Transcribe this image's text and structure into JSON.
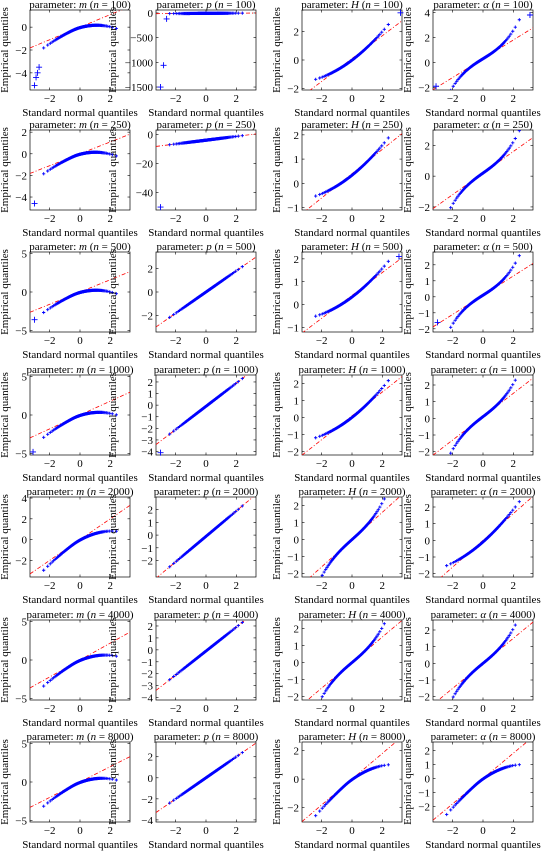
{
  "style": {
    "marker_color": "#0000ff",
    "line_color": "#ff0000",
    "axis_color": "#000000"
  },
  "chart_data": [
    {
      "type": "scatter",
      "param": "m",
      "n": "100",
      "title": "parameter: m (n = 100)",
      "xlabel": "Standard normal quantiles",
      "ylabel": "Empirical quantiles",
      "xlim": [
        -3.3,
        3.3
      ],
      "ylim": [
        -5.5,
        1.5
      ],
      "yticks": [
        -4,
        -2,
        0
      ],
      "xticks": [
        -2,
        0,
        2
      ],
      "shape": "conc",
      "line_slope": 0.55,
      "line_intercept": 0.0,
      "tails": [
        [
          -3.0,
          -5.1
        ],
        [
          -2.9,
          -4.4
        ],
        [
          -2.8,
          -4.0
        ],
        [
          -2.7,
          -3.5
        ]
      ]
    },
    {
      "type": "scatter",
      "param": "p",
      "n": "100",
      "title": "parameter: p (n = 100)",
      "xlabel": "Standard normal quantiles",
      "ylabel": "Empirical quantiles",
      "xlim": [
        -3.3,
        3.3
      ],
      "ylim": [
        -1560,
        60
      ],
      "yticks": [
        -1500,
        -1000,
        -500,
        0
      ],
      "xticks": [
        -2,
        0,
        2
      ],
      "shape": "flat",
      "line_slope": 0,
      "line_intercept": 0,
      "tails": [
        [
          -3.0,
          -1500
        ],
        [
          -2.8,
          -1060
        ],
        [
          -2.6,
          -120
        ]
      ]
    },
    {
      "type": "scatter",
      "param": "H",
      "n": "100",
      "title": "parameter: H (n = 100)",
      "xlabel": "Standard normal quantiles",
      "ylabel": "Empirical quantiles",
      "xlim": [
        -3.3,
        3.3
      ],
      "ylim": [
        -2.1,
        3.5
      ],
      "yticks": [
        -2,
        0,
        2
      ],
      "xticks": [
        -2,
        0,
        2
      ],
      "shape": "conv",
      "line_slope": 0.8,
      "line_intercept": 0.1,
      "tails": [
        [
          3.2,
          3.3
        ]
      ]
    },
    {
      "type": "scatter",
      "param": "α",
      "n": "100",
      "title": "parameter: α (n = 100)",
      "xlabel": "Standard normal quantiles",
      "ylabel": "Empirical quantiles",
      "xlim": [
        -3.3,
        3.3
      ],
      "ylim": [
        -2.2,
        4.2
      ],
      "yticks": [
        -2,
        0,
        2,
        4
      ],
      "xticks": [
        -2,
        0,
        2
      ],
      "shape": "s",
      "line_slope": 0.75,
      "line_intercept": 0.3,
      "tails": [
        [
          -3.1,
          -1.9
        ],
        [
          3.1,
          3.8
        ]
      ]
    },
    {
      "type": "scatter",
      "param": "m",
      "n": "250",
      "title": "parameter: m (n = 250)",
      "xlabel": "Standard normal quantiles",
      "ylabel": "Empirical quantiles",
      "xlim": [
        -3.3,
        3.3
      ],
      "ylim": [
        -5.2,
        2.2
      ],
      "yticks": [
        -4,
        -2,
        0,
        2
      ],
      "xticks": [
        -2,
        0,
        2
      ],
      "shape": "conc",
      "line_slope": 0.55,
      "line_intercept": 0.0,
      "tails": [
        [
          -3.0,
          -4.6
        ]
      ]
    },
    {
      "type": "scatter",
      "param": "p",
      "n": "250",
      "title": "parameter: p (n = 250)",
      "xlabel": "Standard normal quantiles",
      "ylabel": "Empirical quantiles",
      "xlim": [
        -3.3,
        3.3
      ],
      "ylim": [
        -52,
        3
      ],
      "yticks": [
        -40,
        -20,
        0
      ],
      "xticks": [
        -2,
        0,
        2
      ],
      "shape": "flatlow",
      "line_slope": 0.5,
      "line_intercept": -0.5,
      "tails": [
        [
          -3.0,
          -50
        ]
      ]
    },
    {
      "type": "scatter",
      "param": "H",
      "n": "250",
      "title": "parameter: H (n = 250)",
      "xlabel": "Standard normal quantiles",
      "ylabel": "Empirical quantiles",
      "xlim": [
        -3.3,
        3.3
      ],
      "ylim": [
        -1.1,
        2.2
      ],
      "yticks": [
        -1,
        0,
        1,
        2
      ],
      "xticks": [
        -2,
        0,
        2
      ],
      "shape": "conv",
      "line_slope": 0.5,
      "line_intercept": 0.4,
      "tails": []
    },
    {
      "type": "scatter",
      "param": "α",
      "n": "250",
      "title": "parameter: α (n = 250)",
      "xlabel": "Standard normal quantiles",
      "ylabel": "Empirical quantiles",
      "xlim": [
        -3.3,
        3.3
      ],
      "ylim": [
        -2.2,
        3.0
      ],
      "yticks": [
        -2,
        0,
        2
      ],
      "xticks": [
        -2,
        0,
        2
      ],
      "shape": "s",
      "line_slope": 0.7,
      "line_intercept": 0.2,
      "tails": []
    },
    {
      "type": "scatter",
      "param": "m",
      "n": "500",
      "title": "parameter: m (n = 500)",
      "xlabel": "Standard normal quantiles",
      "ylabel": "Empirical quantiles",
      "xlim": [
        -3.3,
        3.3
      ],
      "ylim": [
        -5.2,
        5.2
      ],
      "yticks": [
        -5,
        0,
        5
      ],
      "xticks": [
        -2,
        0,
        2
      ],
      "shape": "conc",
      "line_slope": 0.8,
      "line_intercept": 0.0,
      "tails": [
        [
          -3.0,
          -3.6
        ]
      ]
    },
    {
      "type": "scatter",
      "param": "p",
      "n": "500",
      "title": "parameter: p (n = 500)",
      "xlabel": "Standard normal quantiles",
      "ylabel": "Empirical quantiles",
      "xlim": [
        -3.3,
        3.3
      ],
      "ylim": [
        -3.4,
        3.4
      ],
      "yticks": [
        -2,
        0,
        2
      ],
      "xticks": [
        -2,
        0,
        2
      ],
      "shape": "lin",
      "line_slope": 0.9,
      "line_intercept": 0.0,
      "tails": []
    },
    {
      "type": "scatter",
      "param": "H",
      "n": "500",
      "title": "parameter: H (n = 500)",
      "xlabel": "Standard normal quantiles",
      "ylabel": "Empirical quantiles",
      "xlim": [
        -3.3,
        3.3
      ],
      "ylim": [
        -1.2,
        2.3
      ],
      "yticks": [
        -1,
        0,
        1,
        2
      ],
      "xticks": [
        -2,
        0,
        2
      ],
      "shape": "conv",
      "line_slope": 0.5,
      "line_intercept": 0.4,
      "tails": [
        [
          3.1,
          2.1
        ]
      ]
    },
    {
      "type": "scatter",
      "param": "α",
      "n": "500",
      "title": "parameter: α (n = 500)",
      "xlabel": "Standard normal quantiles",
      "ylabel": "Empirical quantiles",
      "xlim": [
        -3.3,
        3.3
      ],
      "ylim": [
        -2.2,
        2.8
      ],
      "yticks": [
        -2,
        -1,
        0,
        1,
        2
      ],
      "xticks": [
        -2,
        0,
        2
      ],
      "shape": "s",
      "line_slope": 0.6,
      "line_intercept": 0.1,
      "tails": [
        [
          -3.0,
          -1.6
        ]
      ]
    },
    {
      "type": "scatter",
      "param": "m",
      "n": "1000",
      "title": "parameter: m (n = 1000)",
      "xlabel": "Standard normal quantiles",
      "ylabel": "Empirical quantiles",
      "xlim": [
        -3.3,
        3.3
      ],
      "ylim": [
        -5.2,
        5.2
      ],
      "yticks": [
        -5,
        0,
        5
      ],
      "xticks": [
        -2,
        0,
        2
      ],
      "shape": "conc",
      "line_slope": 0.9,
      "line_intercept": 0.0,
      "tails": [
        [
          -3.1,
          -4.8
        ]
      ]
    },
    {
      "type": "scatter",
      "param": "p",
      "n": "1000",
      "title": "parameter: p (n = 1000)",
      "xlabel": "Standard normal quantiles",
      "ylabel": "Empirical quantiles",
      "xlim": [
        -3.3,
        3.3
      ],
      "ylim": [
        -4.3,
        2.6
      ],
      "yticks": [
        -4,
        -3,
        -2,
        -1,
        0,
        1,
        2
      ],
      "xticks": [
        -2,
        0,
        2
      ],
      "shape": "lin",
      "line_slope": 1.0,
      "line_intercept": -0.1,
      "tails": [
        [
          -3.0,
          -4.1
        ]
      ]
    },
    {
      "type": "scatter",
      "param": "H",
      "n": "1000",
      "title": "parameter: H (n = 1000)",
      "xlabel": "Standard normal quantiles",
      "ylabel": "Empirical quantiles",
      "xlim": [
        -3.3,
        3.3
      ],
      "ylim": [
        -2.2,
        2.5
      ],
      "yticks": [
        -2,
        -1,
        0,
        1,
        2
      ],
      "xticks": [
        -2,
        0,
        2
      ],
      "shape": "conv",
      "line_slope": 0.7,
      "line_intercept": 0.1,
      "tails": []
    },
    {
      "type": "scatter",
      "param": "α",
      "n": "1000",
      "title": "parameter: α (n = 1000)",
      "xlabel": "Standard normal quantiles",
      "ylabel": "Empirical quantiles",
      "xlim": [
        -3.3,
        3.3
      ],
      "ylim": [
        -2.2,
        2.6
      ],
      "yticks": [
        -2,
        -1,
        0,
        1,
        2
      ],
      "xticks": [
        -2,
        0,
        2
      ],
      "shape": "s",
      "line_slope": 0.7,
      "line_intercept": 0.1,
      "tails": []
    },
    {
      "type": "scatter",
      "param": "m",
      "n": "2000",
      "title": "parameter: m (n = 2000)",
      "xlabel": "Standard normal quantiles",
      "ylabel": "Empirical quantiles",
      "xlim": [
        -3.3,
        3.3
      ],
      "ylim": [
        -3.6,
        4.1
      ],
      "yticks": [
        -2,
        0,
        2,
        4
      ],
      "xticks": [
        -2,
        0,
        2
      ],
      "shape": "conc",
      "line_slope": 1.0,
      "line_intercept": 0.0,
      "tails": []
    },
    {
      "type": "scatter",
      "param": "p",
      "n": "2000",
      "title": "parameter: p (n = 2000)",
      "xlabel": "Standard normal quantiles",
      "ylabel": "Empirical quantiles",
      "xlim": [
        -3.3,
        3.3
      ],
      "ylim": [
        -3.3,
        3.0
      ],
      "yticks": [
        -2,
        -1,
        0,
        1,
        2
      ],
      "xticks": [
        -2,
        0,
        2
      ],
      "shape": "lin",
      "line_slope": 1.0,
      "line_intercept": -0.1,
      "tails": []
    },
    {
      "type": "scatter",
      "param": "H",
      "n": "2000",
      "title": "parameter: H (n = 2000)",
      "xlabel": "Standard normal quantiles",
      "ylabel": "Empirical quantiles",
      "xlim": [
        -3.3,
        3.3
      ],
      "ylim": [
        -2.2,
        2.5
      ],
      "yticks": [
        -2,
        -1,
        0,
        1,
        2
      ],
      "xticks": [
        -2,
        0,
        2
      ],
      "shape": "s",
      "line_slope": 0.8,
      "line_intercept": 0.0,
      "tails": []
    },
    {
      "type": "scatter",
      "param": "α",
      "n": "2000",
      "title": "parameter: α (n = 2000)",
      "xlabel": "Standard normal quantiles",
      "ylabel": "Empirical quantiles",
      "xlim": [
        -3.3,
        3.3
      ],
      "ylim": [
        -2.2,
        2.6
      ],
      "yticks": [
        -2,
        -1,
        0,
        1,
        2
      ],
      "xticks": [
        -2,
        0,
        2
      ],
      "shape": "conv",
      "line_slope": 0.8,
      "line_intercept": 0.0,
      "tails": []
    },
    {
      "type": "scatter",
      "param": "m",
      "n": "4000",
      "title": "parameter: m (n = 4000)",
      "xlabel": "Standard normal quantiles",
      "ylabel": "Empirical quantiles",
      "xlim": [
        -3.3,
        3.3
      ],
      "ylim": [
        -5.2,
        5.2
      ],
      "yticks": [
        -5,
        0,
        5
      ],
      "xticks": [
        -2,
        0,
        2
      ],
      "shape": "conc",
      "line_slope": 1.1,
      "line_intercept": 0.0,
      "tails": []
    },
    {
      "type": "scatter",
      "param": "p",
      "n": "4000",
      "title": "parameter: p (n = 4000)",
      "xlabel": "Standard normal quantiles",
      "ylabel": "Empirical quantiles",
      "xlim": [
        -3.3,
        3.3
      ],
      "ylim": [
        -4.2,
        2.5
      ],
      "yticks": [
        -4,
        -3,
        -2,
        -1,
        0,
        1,
        2
      ],
      "xticks": [
        -2,
        0,
        2
      ],
      "shape": "lin",
      "line_slope": 1.0,
      "line_intercept": -0.1,
      "tails": []
    },
    {
      "type": "scatter",
      "param": "H",
      "n": "4000",
      "title": "parameter: H (n = 4000)",
      "xlabel": "Standard normal quantiles",
      "ylabel": "Empirical quantiles",
      "xlim": [
        -3.3,
        3.3
      ],
      "ylim": [
        -2.2,
        2.5
      ],
      "yticks": [
        -2,
        -1,
        0,
        1,
        2
      ],
      "xticks": [
        -2,
        0,
        2
      ],
      "shape": "s",
      "line_slope": 0.75,
      "line_intercept": 0.0,
      "tails": []
    },
    {
      "type": "scatter",
      "param": "α",
      "n": "4000",
      "title": "parameter: α (n = 4000)",
      "xlabel": "Standard normal quantiles",
      "ylabel": "Empirical quantiles",
      "xlim": [
        -3.3,
        3.3
      ],
      "ylim": [
        -2.2,
        2.6
      ],
      "yticks": [
        -2,
        -1,
        0,
        1,
        2
      ],
      "xticks": [
        -2,
        0,
        2
      ],
      "shape": "s",
      "line_slope": 0.75,
      "line_intercept": 0.0,
      "tails": []
    },
    {
      "type": "scatter",
      "param": "m",
      "n": "8000",
      "title": "parameter: m (n = 8000)",
      "xlabel": "Standard normal quantiles",
      "ylabel": "Empirical quantiles",
      "xlim": [
        -3.3,
        3.3
      ],
      "ylim": [
        -5.2,
        5.2
      ],
      "yticks": [
        -5,
        0,
        5
      ],
      "xticks": [
        -2,
        0,
        2
      ],
      "shape": "conc",
      "line_slope": 1.0,
      "line_intercept": 0.0,
      "tails": []
    },
    {
      "type": "scatter",
      "param": "p",
      "n": "8000",
      "title": "parameter: p (n = 8000)",
      "xlabel": "Standard normal quantiles",
      "ylabel": "Empirical quantiles",
      "xlim": [
        -3.3,
        3.3
      ],
      "ylim": [
        -4.2,
        3.4
      ],
      "yticks": [
        -4,
        -2,
        0,
        2
      ],
      "xticks": [
        -2,
        0,
        2
      ],
      "shape": "lin",
      "line_slope": 1.0,
      "line_intercept": 0.0,
      "tails": []
    },
    {
      "type": "scatter",
      "param": "H",
      "n": "8000",
      "title": "parameter: H (n = 8000)",
      "xlabel": "Standard normal quantiles",
      "ylabel": "Empirical quantiles",
      "xlim": [
        -3.3,
        3.3
      ],
      "ylim": [
        -3.0,
        2.6
      ],
      "yticks": [
        -2,
        0,
        2
      ],
      "xticks": [
        -2,
        0,
        2
      ],
      "shape": "conc",
      "line_slope": 0.9,
      "line_intercept": 0.0,
      "tails": []
    },
    {
      "type": "scatter",
      "param": "α",
      "n": "8000",
      "title": "parameter: α (n = 8000)",
      "xlabel": "Standard normal quantiles",
      "ylabel": "Empirical quantiles",
      "xlim": [
        -3.3,
        3.3
      ],
      "ylim": [
        -3.1,
        2.6
      ],
      "yticks": [
        -2,
        -1,
        0,
        1,
        2
      ],
      "xticks": [
        -2,
        0,
        2
      ],
      "shape": "conc",
      "line_slope": 0.9,
      "line_intercept": 0.0,
      "tails": []
    }
  ]
}
